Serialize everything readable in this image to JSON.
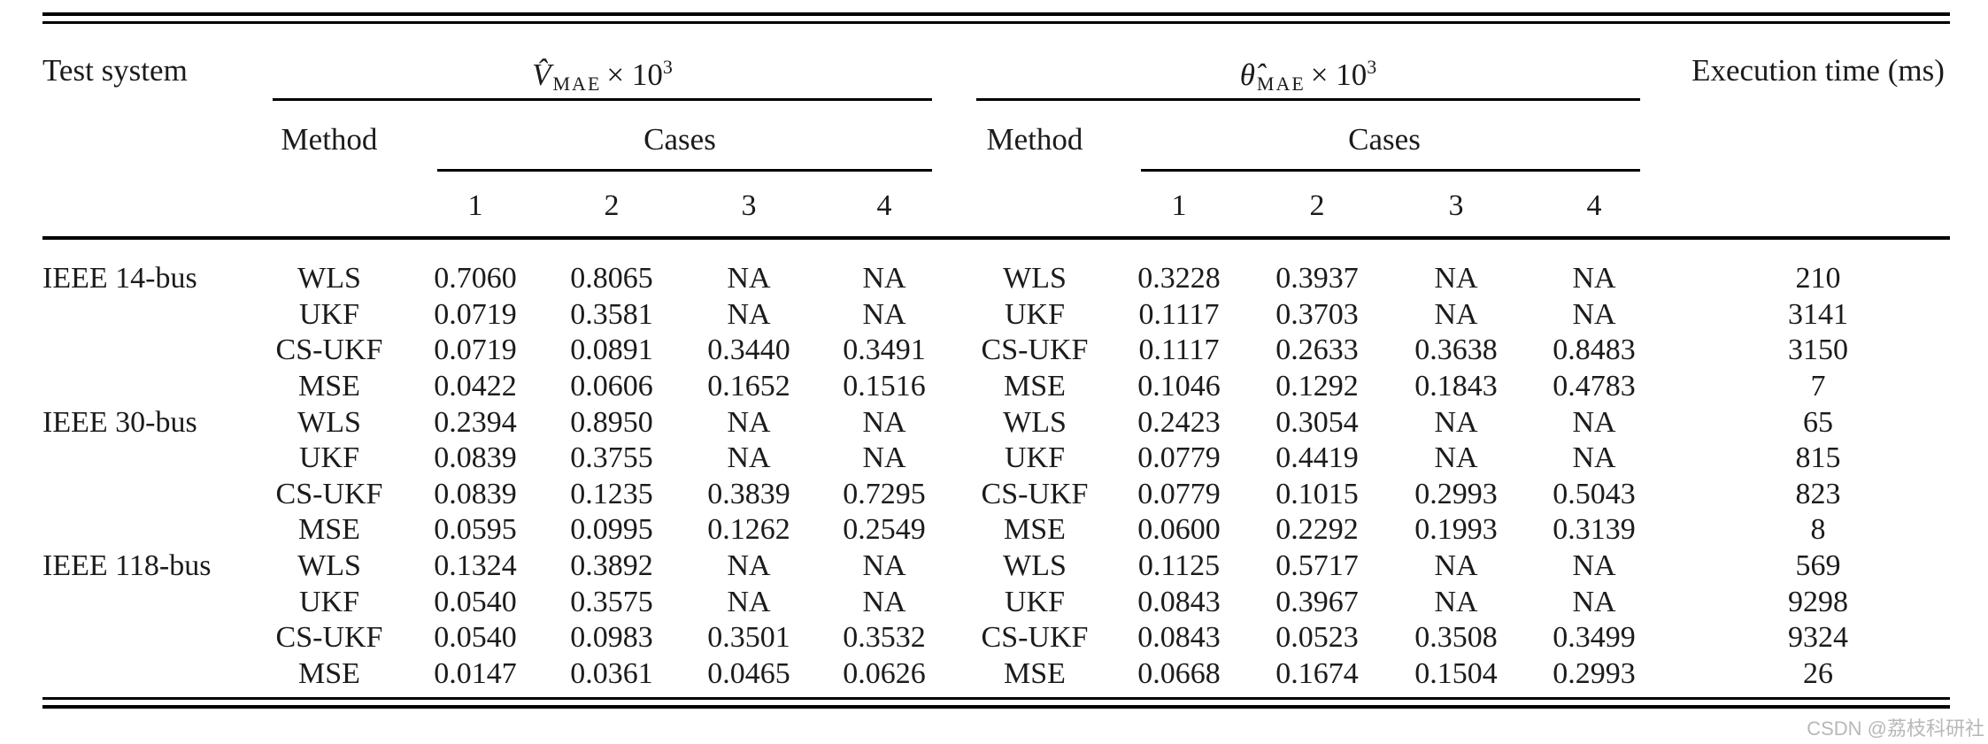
{
  "header": {
    "test_system": "Test system",
    "groups": [
      {
        "symbol": "V̂",
        "subscript": "MAE",
        "times": "× 10",
        "exponent": "3",
        "method_label": "Method",
        "cases_label": "Cases",
        "case_numbers": [
          "1",
          "2",
          "3",
          "4"
        ]
      },
      {
        "symbol": "θ̂",
        "subscript": "MAE",
        "times": "× 10",
        "exponent": "3",
        "method_label": "Method",
        "cases_label": "Cases",
        "case_numbers": [
          "1",
          "2",
          "3",
          "4"
        ]
      }
    ],
    "exec_time": "Execution time (ms)"
  },
  "body": {
    "groups": [
      {
        "system": "IEEE 14-bus",
        "rows": [
          {
            "method": "WLS",
            "v": [
              "0.7060",
              "0.8065",
              "NA",
              "NA"
            ],
            "theta": [
              "0.3228",
              "0.3937",
              "NA",
              "NA"
            ],
            "time": "210"
          },
          {
            "method": "UKF",
            "v": [
              "0.0719",
              "0.3581",
              "NA",
              "NA"
            ],
            "theta": [
              "0.1117",
              "0.3703",
              "NA",
              "NA"
            ],
            "time": "3141"
          },
          {
            "method": "CS-UKF",
            "v": [
              "0.0719",
              "0.0891",
              "0.3440",
              "0.3491"
            ],
            "theta": [
              "0.1117",
              "0.2633",
              "0.3638",
              "0.8483"
            ],
            "time": "3150"
          },
          {
            "method": "MSE",
            "v": [
              "0.0422",
              "0.0606",
              "0.1652",
              "0.1516"
            ],
            "theta": [
              "0.1046",
              "0.1292",
              "0.1843",
              "0.4783"
            ],
            "time": "7"
          }
        ]
      },
      {
        "system": "IEEE 30-bus",
        "rows": [
          {
            "method": "WLS",
            "v": [
              "0.2394",
              "0.8950",
              "NA",
              "NA"
            ],
            "theta": [
              "0.2423",
              "0.3054",
              "NA",
              "NA"
            ],
            "time": "65"
          },
          {
            "method": "UKF",
            "v": [
              "0.0839",
              "0.3755",
              "NA",
              "NA"
            ],
            "theta": [
              "0.0779",
              "0.4419",
              "NA",
              "NA"
            ],
            "time": "815"
          },
          {
            "method": "CS-UKF",
            "v": [
              "0.0839",
              "0.1235",
              "0.3839",
              "0.7295"
            ],
            "theta": [
              "0.0779",
              "0.1015",
              "0.2993",
              "0.5043"
            ],
            "time": "823"
          },
          {
            "method": "MSE",
            "v": [
              "0.0595",
              "0.0995",
              "0.1262",
              "0.2549"
            ],
            "theta": [
              "0.0600",
              "0.2292",
              "0.1993",
              "0.3139"
            ],
            "time": "8"
          }
        ]
      },
      {
        "system": "IEEE 118-bus",
        "rows": [
          {
            "method": "WLS",
            "v": [
              "0.1324",
              "0.3892",
              "NA",
              "NA"
            ],
            "theta": [
              "0.1125",
              "0.5717",
              "NA",
              "NA"
            ],
            "time": "569"
          },
          {
            "method": "UKF",
            "v": [
              "0.0540",
              "0.3575",
              "NA",
              "NA"
            ],
            "theta": [
              "0.0843",
              "0.3967",
              "NA",
              "NA"
            ],
            "time": "9298"
          },
          {
            "method": "CS-UKF",
            "v": [
              "0.0540",
              "0.0983",
              "0.3501",
              "0.3532"
            ],
            "theta": [
              "0.0843",
              "0.0523",
              "0.3508",
              "0.3499"
            ],
            "time": "9324"
          },
          {
            "method": "MSE",
            "v": [
              "0.0147",
              "0.0361",
              "0.0465",
              "0.0626"
            ],
            "theta": [
              "0.0668",
              "0.1674",
              "0.1504",
              "0.2993"
            ],
            "time": "26"
          }
        ]
      }
    ]
  },
  "watermark": "CSDN @荔枝科研社",
  "colors": {
    "text": "#1b1b1b",
    "rule": "#000000",
    "watermark": "#b8b8b8",
    "background": "#ffffff"
  }
}
